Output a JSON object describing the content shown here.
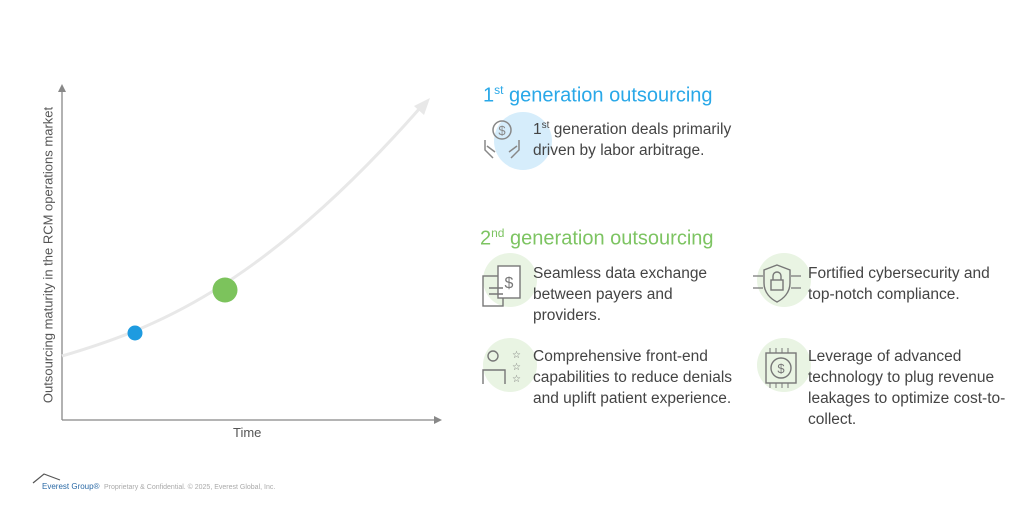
{
  "chart": {
    "y_axis_label": "Outsourcing maturity in the RCM operations market",
    "x_axis_label": "Time",
    "markers": [
      {
        "stage": "1st generation",
        "color": "#1e9be0"
      },
      {
        "stage": "2nd generation",
        "color": "#7cc35c"
      }
    ]
  },
  "gen1": {
    "title_num": "1",
    "title_sup": "st",
    "title_rest": " generation outsourcing",
    "color": "#29a8e8",
    "item": {
      "icon": "money-hands-icon",
      "num": "1",
      "sup": "st",
      "text": " generation deals primarily driven by labor arbitrage."
    }
  },
  "gen2": {
    "title_num": "2",
    "title_sup": "nd",
    "title_rest": " generation outsourcing",
    "color": "#7dc462",
    "items": [
      {
        "icon": "data-exchange-icon",
        "text": "Seamless data exchange between payers and providers."
      },
      {
        "icon": "shield-lock-icon",
        "text": "Fortified cybersecurity and top-notch compliance."
      },
      {
        "icon": "gear-person-stars-icon",
        "text": "Comprehensive front-end capabilities to reduce denials and uplift patient experience."
      },
      {
        "icon": "chip-dollar-icon",
        "text": "Leverage of advanced technology to plug revenue leakages to optimize cost-to-collect."
      }
    ]
  },
  "footer": {
    "logo": "Everest Group®",
    "text": "Proprietary & Confidential. © 2025, Everest Global, Inc."
  }
}
